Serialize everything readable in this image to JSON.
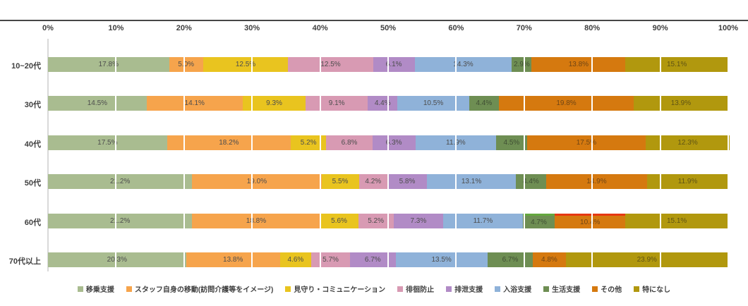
{
  "chart_data": {
    "type": "bar",
    "subtype": "horizontal-stacked-100pct",
    "title": "",
    "xlabel": "",
    "ylabel": "",
    "x_axis_ticks": [
      "0%",
      "10%",
      "20%",
      "30%",
      "40%",
      "50%",
      "60%",
      "70%",
      "80%",
      "90%",
      "100%"
    ],
    "xlim": [
      0,
      100
    ],
    "grid": "vertical-white-gridlines-over-bars",
    "legend_position": "bottom-center",
    "categories": [
      "10~20代",
      "30代",
      "40代",
      "50代",
      "60代",
      "70代以上"
    ],
    "series": [
      {
        "name": "移乗支援",
        "color": "#a9bc90",
        "label_tone": "light",
        "values": [
          17.8,
          14.5,
          17.5,
          21.2,
          21.2,
          20.3
        ]
      },
      {
        "name": "スタッフ自身の移動(訪問介護等をイメージ)",
        "color": "#f6a44c",
        "label_tone": "light",
        "values": [
          5.0,
          14.1,
          18.2,
          19.0,
          18.8,
          13.8
        ]
      },
      {
        "name": "見守り・コミュニケーション",
        "color": "#e9c41f",
        "label_tone": "light",
        "values": [
          12.5,
          9.3,
          5.2,
          5.5,
          5.6,
          4.6
        ]
      },
      {
        "name": "徘徊防止",
        "color": "#d89ab3",
        "label_tone": "light",
        "values": [
          12.5,
          9.1,
          6.8,
          4.2,
          5.2,
          5.7
        ]
      },
      {
        "name": "排泄支援",
        "color": "#b18bc6",
        "label_tone": "light",
        "values": [
          6.1,
          4.4,
          6.3,
          5.8,
          7.3,
          6.7
        ]
      },
      {
        "name": "入浴支援",
        "color": "#8fb2d9",
        "label_tone": "light",
        "values": [
          14.3,
          10.5,
          11.9,
          13.1,
          11.7,
          13.5
        ]
      },
      {
        "name": "生活支援",
        "color": "#6e8e53",
        "label_tone": "dark",
        "values": [
          2.9,
          4.4,
          4.5,
          4.4,
          4.7,
          6.7
        ]
      },
      {
        "name": "その他",
        "color": "#d5790f",
        "label_tone": "dark",
        "values": [
          13.8,
          19.8,
          17.5,
          14.9,
          10.4,
          4.8
        ]
      },
      {
        "name": "特になし",
        "color": "#b1980e",
        "label_tone": "dark",
        "values": [
          15.1,
          13.9,
          12.3,
          11.9,
          15.1,
          23.9
        ]
      }
    ],
    "segment_top_highlights": [
      {
        "category": "60代",
        "series": "生活支援",
        "color": "#64a73e"
      },
      {
        "category": "60代",
        "series": "その他",
        "color": "#e63812"
      }
    ],
    "value_label_format": "0.0%"
  }
}
